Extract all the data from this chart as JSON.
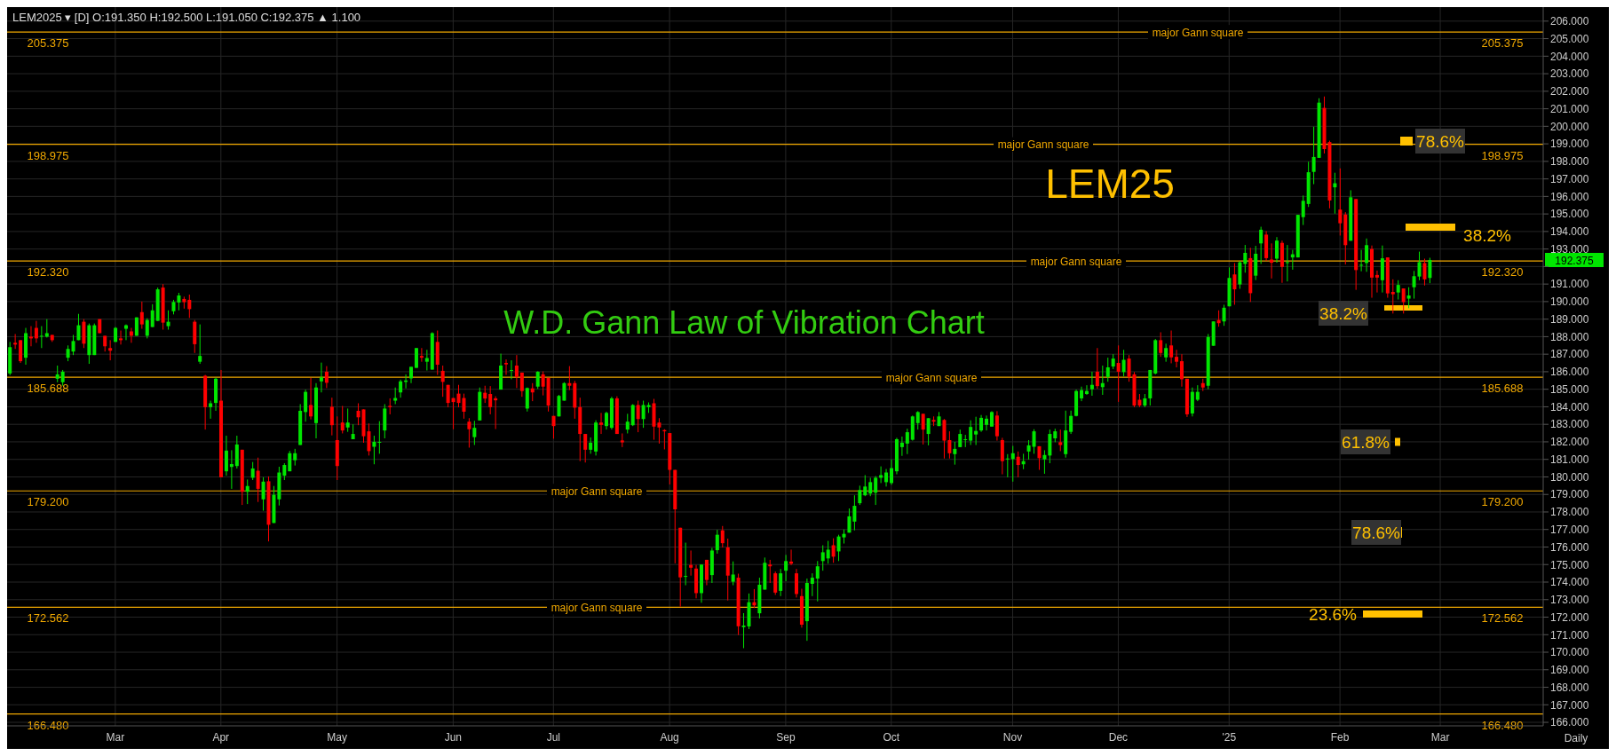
{
  "chart_data": {
    "type": "candlestick",
    "title": "W.D. Gann Law of Vibration Chart",
    "subtitle": "LEM2025 ▾ [D] O:191.350 H:192.500 L:191.050 C:192.375 ▲ 1.100",
    "categories": [
      null,
      null,
      null,
      null,
      null,
      null,
      null,
      null,
      null,
      null,
      null,
      null,
      null,
      null,
      null,
      null,
      null,
      null,
      null,
      null,
      "Mar",
      null,
      null,
      null,
      null,
      null,
      null,
      null,
      null,
      null,
      null,
      null,
      null,
      null,
      null,
      null,
      null,
      null,
      null,
      null,
      "Apr",
      null,
      null,
      null,
      null,
      null,
      null,
      null,
      null,
      null,
      null,
      null,
      null,
      null,
      null,
      null,
      null,
      null,
      null,
      null,
      null,
      null,
      "May",
      null,
      null,
      null,
      null,
      null,
      null,
      null,
      null,
      null,
      null,
      null,
      null,
      null,
      null,
      null,
      null,
      null,
      null,
      null,
      null,
      null,
      "Jun",
      null,
      null,
      null,
      null,
      null,
      null,
      null,
      null,
      null,
      null,
      null,
      null,
      null,
      null,
      null,
      null,
      null,
      null,
      "Jul",
      null,
      null,
      null,
      null,
      null,
      null,
      null,
      null,
      null,
      null,
      null,
      null,
      null,
      null,
      null,
      null,
      null,
      null,
      null,
      null,
      null,
      "Aug",
      null,
      null,
      null,
      null,
      null,
      null,
      null,
      null,
      null,
      null,
      null,
      null,
      null,
      null,
      null,
      null,
      null,
      null,
      null,
      null,
      null,
      "Sep",
      null,
      null,
      null,
      null,
      null,
      null,
      null,
      null,
      null,
      null,
      null,
      null,
      null,
      null,
      null,
      null,
      null,
      null,
      null,
      "Oct",
      null,
      null,
      null,
      null,
      null,
      null,
      null,
      null,
      null,
      null,
      null,
      null,
      null,
      null,
      null,
      null,
      null,
      null,
      null,
      null,
      null,
      null,
      "Nov",
      null,
      null,
      null,
      null,
      null,
      null,
      null,
      null,
      null,
      null,
      null,
      null,
      null,
      null,
      null,
      null,
      null,
      null,
      null,
      "Dec",
      null,
      null,
      null,
      null,
      null,
      null,
      null,
      null,
      null,
      null,
      null,
      null,
      null,
      null,
      null,
      null,
      null,
      null,
      null,
      null,
      "'25",
      null,
      null,
      null,
      null,
      null,
      null,
      null,
      null,
      null,
      null,
      null,
      null,
      null,
      null,
      null,
      null,
      null,
      null,
      null,
      null,
      "Feb",
      null,
      null,
      null,
      null,
      null,
      null,
      null,
      null,
      null,
      null,
      null,
      null,
      null,
      null,
      null,
      null,
      null,
      null,
      "Mar",
      null,
      null,
      null,
      null,
      null,
      null,
      null,
      null,
      null,
      null,
      null,
      null,
      null,
      null,
      null,
      null,
      null,
      null,
      null
    ],
    "ohlc": [
      [
        185.9,
        187.7,
        185.8,
        187.4
      ],
      [
        187.65,
        188.15,
        187.3,
        187.55
      ],
      [
        187.8,
        187.8,
        186.5,
        186.6
      ],
      [
        186.8,
        188.5,
        186.4,
        188.2
      ],
      [
        188.0,
        188.6,
        187.45,
        187.9
      ],
      [
        188.5,
        188.9,
        187.65,
        187.9
      ],
      [
        188.0,
        188.6,
        187.35,
        188.05
      ],
      [
        188.0,
        189.0,
        187.95,
        188.2
      ],
      [
        188.1,
        188.1,
        187.7,
        187.8
      ],
      [
        185.6,
        186.35,
        185.4,
        185.85
      ],
      [
        185.4,
        186.1,
        185.2,
        186.0
      ],
      [
        186.8,
        187.5,
        186.6,
        187.3
      ],
      [
        187.15,
        188.1,
        186.95,
        187.75
      ],
      [
        187.8,
        189.3,
        187.8,
        188.65
      ],
      [
        188.85,
        189.0,
        187.35,
        187.6
      ],
      [
        186.95,
        188.75,
        186.45,
        188.65
      ],
      [
        186.95,
        188.75,
        186.95,
        188.65
      ],
      [
        189.0,
        189.0,
        188.2,
        188.2
      ],
      [
        188.05,
        188.05,
        187.15,
        187.45
      ],
      [
        187.35,
        187.8,
        186.65,
        187.2
      ],
      [
        187.7,
        188.55,
        187.7,
        188.5
      ],
      [
        187.9,
        188.35,
        187.55,
        187.8
      ],
      [
        188.45,
        188.7,
        187.8,
        188.65
      ],
      [
        188.3,
        188.5,
        187.65,
        188.05
      ],
      [
        188.05,
        189.1,
        188.05,
        189.1
      ],
      [
        189.4,
        190.0,
        188.45,
        188.7
      ],
      [
        188.05,
        189.05,
        187.9,
        188.95
      ],
      [
        188.55,
        189.85,
        188.55,
        189.5
      ],
      [
        188.9,
        190.8,
        188.9,
        190.7
      ],
      [
        190.8,
        191.0,
        188.4,
        188.8
      ],
      [
        188.6,
        189.5,
        188.4,
        188.85
      ],
      [
        189.45,
        190.1,
        189.27,
        189.98
      ],
      [
        189.95,
        190.5,
        189.5,
        190.35
      ],
      [
        190.15,
        190.28,
        189.6,
        189.97
      ],
      [
        190.1,
        190.4,
        189.07,
        189.57
      ],
      [
        188.85,
        188.95,
        187.07,
        187.57
      ],
      [
        186.57,
        188.7,
        186.45,
        186.9
      ],
      [
        185.77,
        185.82,
        182.7,
        183.98
      ],
      [
        183.98,
        184.35,
        183.32,
        184.2
      ],
      [
        184.22,
        185.67,
        183.77,
        185.6
      ],
      [
        184.35,
        186.1,
        179.98,
        179.98
      ],
      [
        180.32,
        182.35,
        180.07,
        181.5
      ],
      [
        180.57,
        181.52,
        179.32,
        180.73
      ],
      [
        180.62,
        182.35,
        180.48,
        181.85
      ],
      [
        181.55,
        181.55,
        178.4,
        179.15
      ],
      [
        179.15,
        179.85,
        178.45,
        179.48
      ],
      [
        179.95,
        180.85,
        179.82,
        180.48
      ],
      [
        180.35,
        181.1,
        178.57,
        179.32
      ],
      [
        178.72,
        179.98,
        178.07,
        179.73
      ],
      [
        179.75,
        180.03,
        176.32,
        177.27
      ],
      [
        177.37,
        179.48,
        177.37,
        178.98
      ],
      [
        178.72,
        180.58,
        178.37,
        180.25
      ],
      [
        180.07,
        180.78,
        179.82,
        180.68
      ],
      [
        180.32,
        181.48,
        180.32,
        181.35
      ],
      [
        180.95,
        181.6,
        180.65,
        181.35
      ],
      [
        181.82,
        184.15,
        181.82,
        183.77
      ],
      [
        183.7,
        184.98,
        183.15,
        184.85
      ],
      [
        184.1,
        185.65,
        183.28,
        183.45
      ],
      [
        183.07,
        185.35,
        182.2,
        185.1
      ],
      [
        185.45,
        186.52,
        184.82,
        185.68
      ],
      [
        186.0,
        186.32,
        185.07,
        185.37
      ],
      [
        184.0,
        184.52,
        182.37,
        182.95
      ],
      [
        182.1,
        183.45,
        179.82,
        180.62
      ],
      [
        183.1,
        184.05,
        182.48,
        182.65
      ],
      [
        182.82,
        183.9,
        182.57,
        183.1
      ],
      [
        182.15,
        183.0,
        182.15,
        182.45
      ],
      [
        183.77,
        184.2,
        182.95,
        183.4
      ],
      [
        183.85,
        183.85,
        181.95,
        182.32
      ],
      [
        182.6,
        183.05,
        181.22,
        181.47
      ],
      [
        181.72,
        182.35,
        180.72,
        182.0
      ],
      [
        181.98,
        183.18,
        181.32,
        182.0
      ],
      [
        182.65,
        184.15,
        182.2,
        183.9
      ],
      [
        184.05,
        184.48,
        183.57,
        183.98
      ],
      [
        184.35,
        185.1,
        184.15,
        184.5
      ],
      [
        184.82,
        185.55,
        184.52,
        185.45
      ],
      [
        185.42,
        185.85,
        185.05,
        185.5
      ],
      [
        185.62,
        186.28,
        185.35,
        186.28
      ],
      [
        186.22,
        187.35,
        186.22,
        187.35
      ],
      [
        186.9,
        187.35,
        186.57,
        186.8
      ],
      [
        186.57,
        187.25,
        186.07,
        186.78
      ],
      [
        186.12,
        188.25,
        186.12,
        188.2
      ],
      [
        187.7,
        188.35,
        185.82,
        186.4
      ],
      [
        186.05,
        186.35,
        184.57,
        185.42
      ],
      [
        185.25,
        185.25,
        183.97,
        184.22
      ],
      [
        184.5,
        184.5,
        182.72,
        184.27
      ],
      [
        184.75,
        185.25,
        183.97,
        184.22
      ],
      [
        184.5,
        184.75,
        183.32,
        183.72
      ],
      [
        183.15,
        183.35,
        181.67,
        182.72
      ],
      [
        182.27,
        183.2,
        181.82,
        182.8
      ],
      [
        183.22,
        185.1,
        183.22,
        184.85
      ],
      [
        184.8,
        185.2,
        184.22,
        184.47
      ],
      [
        184.73,
        185.18,
        183.57,
        183.98
      ],
      [
        184.48,
        184.6,
        182.73,
        184.37
      ],
      [
        184.98,
        187.03,
        184.98,
        186.35
      ],
      [
        186.5,
        186.7,
        185.82,
        186.42
      ],
      [
        186.05,
        186.65,
        185.57,
        186.1
      ],
      [
        186.35,
        186.95,
        185.07,
        185.7
      ],
      [
        185.95,
        185.95,
        184.57,
        184.9
      ],
      [
        183.9,
        185.1,
        183.73,
        185.07
      ],
      [
        185.05,
        185.35,
        184.32,
        184.82
      ],
      [
        185.15,
        186.03,
        185.02,
        186.0
      ],
      [
        185.85,
        186.02,
        184.65,
        185.15
      ],
      [
        185.65,
        185.65,
        183.73,
        184.07
      ],
      [
        183.48,
        183.48,
        182.18,
        182.9
      ],
      [
        183.45,
        184.68,
        183.45,
        184.62
      ],
      [
        184.35,
        185.4,
        184.35,
        185.35
      ],
      [
        185.35,
        186.32,
        184.95,
        185.2
      ],
      [
        185.35,
        185.48,
        183.32,
        183.95
      ],
      [
        183.98,
        184.52,
        180.9,
        182.45
      ],
      [
        182.45,
        182.45,
        180.82,
        181.55
      ],
      [
        181.55,
        182.25,
        181.32,
        181.95
      ],
      [
        181.45,
        183.23,
        181.22,
        183.1
      ],
      [
        183.1,
        183.65,
        182.45,
        182.97
      ],
      [
        182.9,
        183.72,
        182.7,
        183.65
      ],
      [
        182.8,
        184.57,
        182.7,
        184.48
      ],
      [
        184.48,
        184.6,
        182.45,
        182.45
      ],
      [
        182.08,
        182.48,
        181.7,
        181.97
      ],
      [
        182.7,
        183.6,
        182.48,
        183.15
      ],
      [
        182.95,
        184.15,
        182.9,
        184.1
      ],
      [
        184.1,
        184.35,
        182.55,
        183.3
      ],
      [
        183.3,
        184.35,
        182.8,
        184.1
      ],
      [
        183.98,
        184.25,
        183.65,
        184.1
      ],
      [
        184.2,
        184.45,
        182.12,
        182.87
      ],
      [
        183.1,
        183.35,
        181.9,
        182.82
      ],
      [
        182.67,
        182.72,
        181.57,
        182.6
      ],
      [
        182.5,
        182.5,
        179.57,
        180.4
      ],
      [
        180.4,
        180.4,
        175.07,
        178.15
      ],
      [
        177.1,
        177.1,
        172.6,
        174.27
      ],
      [
        174.3,
        176.25,
        173.82,
        174.35
      ],
      [
        174.98,
        175.8,
        174.37,
        174.82
      ],
      [
        174.77,
        174.98,
        173.07,
        173.37
      ],
      [
        173.37,
        175.0,
        172.82,
        175.0
      ],
      [
        175.27,
        175.27,
        173.82,
        174.12
      ],
      [
        174.4,
        175.95,
        173.95,
        175.8
      ],
      [
        175.82,
        176.98,
        175.62,
        176.7
      ],
      [
        176.95,
        177.2,
        175.97,
        176.22
      ],
      [
        175.98,
        176.48,
        172.95,
        174.37
      ],
      [
        174.02,
        175.18,
        173.82,
        174.43
      ],
      [
        174.25,
        174.48,
        170.98,
        171.48
      ],
      [
        171.43,
        172.23,
        170.23,
        171.52
      ],
      [
        171.47,
        173.35,
        171.32,
        172.85
      ],
      [
        172.85,
        173.6,
        172.52,
        172.67
      ],
      [
        172.22,
        174.25,
        171.93,
        173.85
      ],
      [
        173.57,
        175.4,
        173.57,
        175.1
      ],
      [
        175.0,
        175.27,
        173.95,
        174.9
      ],
      [
        174.5,
        174.6,
        173.27,
        173.4
      ],
      [
        173.5,
        174.75,
        173.2,
        174.5
      ],
      [
        174.65,
        175.55,
        174.05,
        175.2
      ],
      [
        175.17,
        175.85,
        174.97,
        175.05
      ],
      [
        174.5,
        174.75,
        173.12,
        173.32
      ],
      [
        173.2,
        173.62,
        171.4,
        171.57
      ],
      [
        171.77,
        174.2,
        170.65,
        173.95
      ],
      [
        173.9,
        174.5,
        173.2,
        174.25
      ],
      [
        174.2,
        175.2,
        172.9,
        174.9
      ],
      [
        175.2,
        176.1,
        174.65,
        175.7
      ],
      [
        175.35,
        176.35,
        175.05,
        175.85
      ],
      [
        176.1,
        176.5,
        175.1,
        175.45
      ],
      [
        175.75,
        176.7,
        175.2,
        176.6
      ],
      [
        176.55,
        177.0,
        176.2,
        176.75
      ],
      [
        176.82,
        178.2,
        176.82,
        177.75
      ],
      [
        177.45,
        178.95,
        176.95,
        178.35
      ],
      [
        178.5,
        179.5,
        178.4,
        179.25
      ],
      [
        178.95,
        180.1,
        178.9,
        179.45
      ],
      [
        179.05,
        179.95,
        178.9,
        179.7
      ],
      [
        179.1,
        180.05,
        178.4,
        179.95
      ],
      [
        179.95,
        180.6,
        179.65,
        180.1
      ],
      [
        179.7,
        180.45,
        179.45,
        180.25
      ],
      [
        179.65,
        181.0,
        179.55,
        180.5
      ],
      [
        180.32,
        182.23,
        180.15,
        182.15
      ],
      [
        181.7,
        182.3,
        181.2,
        181.95
      ],
      [
        181.9,
        182.75,
        181.3,
        182.55
      ],
      [
        182.12,
        183.5,
        182.07,
        183.45
      ],
      [
        183.07,
        183.75,
        182.7,
        183.7
      ],
      [
        183.6,
        183.6,
        181.85,
        182.7
      ],
      [
        182.45,
        183.35,
        181.8,
        183.35
      ],
      [
        183.25,
        183.45,
        182.9,
        183.15
      ],
      [
        182.9,
        183.7,
        182.9,
        183.45
      ],
      [
        183.25,
        183.3,
        181.05,
        182.07
      ],
      [
        182.1,
        182.6,
        181.05,
        181.35
      ],
      [
        181.3,
        182.0,
        180.7,
        181.6
      ],
      [
        181.7,
        182.7,
        181.7,
        182.45
      ],
      [
        182.1,
        182.4,
        181.7,
        182.15
      ],
      [
        182.07,
        183.23,
        181.82,
        182.85
      ],
      [
        182.42,
        183.43,
        181.82,
        182.62
      ],
      [
        182.65,
        183.53,
        182.57,
        183.37
      ],
      [
        182.97,
        183.5,
        182.65,
        183.32
      ],
      [
        182.87,
        183.75,
        182.87,
        183.7
      ],
      [
        183.5,
        183.75,
        182.07,
        182.32
      ],
      [
        182.1,
        182.23,
        180.15,
        180.9
      ],
      [
        181.0,
        181.3,
        179.98,
        181.05
      ],
      [
        181.02,
        181.77,
        179.73,
        181.35
      ],
      [
        181.15,
        181.45,
        179.98,
        180.68
      ],
      [
        180.72,
        181.32,
        180.44,
        180.9
      ],
      [
        181.45,
        182.1,
        180.99,
        181.8
      ],
      [
        181.72,
        182.72,
        181.32,
        182.6
      ],
      [
        181.75,
        181.75,
        180.4,
        181.07
      ],
      [
        181.0,
        181.52,
        180.18,
        181.25
      ],
      [
        181.22,
        182.7,
        180.78,
        182.45
      ],
      [
        182.2,
        182.75,
        181.98,
        182.6
      ],
      [
        181.98,
        182.7,
        181.47,
        181.82
      ],
      [
        181.3,
        183.78,
        181.1,
        182.65
      ],
      [
        182.57,
        183.78,
        182.45,
        183.48
      ],
      [
        183.48,
        184.98,
        183.45,
        184.9
      ],
      [
        184.48,
        185.15,
        184.32,
        184.95
      ],
      [
        184.73,
        185.23,
        184.68,
        184.9
      ],
      [
        185.0,
        186.0,
        184.63,
        185.25
      ],
      [
        186.0,
        187.35,
        185.03,
        185.18
      ],
      [
        185.12,
        186.35,
        184.68,
        185.35
      ],
      [
        185.7,
        186.8,
        185.43,
        186.25
      ],
      [
        186.3,
        187.0,
        186.15,
        186.75
      ],
      [
        186.5,
        187.5,
        184.28,
        186.0
      ],
      [
        185.98,
        187.25,
        185.74,
        186.68
      ],
      [
        186.75,
        186.95,
        185.43,
        185.7
      ],
      [
        185.85,
        185.98,
        183.98,
        184.07
      ],
      [
        184.4,
        184.73,
        183.98,
        184.07
      ],
      [
        184.07,
        184.73,
        183.98,
        184.48
      ],
      [
        184.48,
        186.1,
        184.07,
        186.1
      ],
      [
        185.9,
        187.87,
        185.85,
        187.8
      ],
      [
        187.8,
        188.25,
        186.85,
        187.07
      ],
      [
        186.82,
        187.6,
        186.57,
        187.35
      ],
      [
        187.5,
        188.35,
        186.48,
        186.82
      ],
      [
        186.85,
        187.25,
        186.25,
        186.57
      ],
      [
        186.6,
        187.0,
        185.15,
        185.57
      ],
      [
        185.6,
        185.6,
        183.42,
        183.57
      ],
      [
        183.62,
        185.1,
        183.45,
        184.85
      ],
      [
        184.4,
        185.23,
        184.32,
        184.85
      ],
      [
        185.35,
        185.6,
        184.9,
        185.1
      ],
      [
        185.2,
        188.15,
        185.0,
        187.98
      ],
      [
        187.48,
        188.87,
        187.48,
        188.87
      ],
      [
        188.95,
        189.5,
        188.57,
        188.77
      ],
      [
        188.87,
        189.82,
        188.62,
        189.65
      ],
      [
        189.73,
        191.95,
        189.73,
        191.35
      ],
      [
        191.55,
        192.2,
        189.82,
        190.7
      ],
      [
        190.98,
        192.32,
        190.73,
        192.24
      ],
      [
        192.15,
        193.23,
        191.65,
        192.78
      ],
      [
        192.48,
        193.07,
        189.98,
        190.48
      ],
      [
        191.48,
        193.18,
        191.23,
        192.73
      ],
      [
        193.32,
        194.27,
        192.15,
        194.1
      ],
      [
        193.82,
        194.02,
        192.32,
        192.48
      ],
      [
        192.4,
        193.32,
        191.32,
        192.22
      ],
      [
        192.45,
        193.68,
        192.22,
        193.48
      ],
      [
        193.35,
        193.48,
        191.07,
        191.98
      ],
      [
        192.2,
        193.23,
        191.15,
        192.25
      ],
      [
        192.52,
        192.95,
        191.82,
        192.7
      ],
      [
        192.52,
        194.95,
        192.52,
        194.95
      ],
      [
        194.82,
        196.05,
        194.37,
        195.75
      ],
      [
        195.57,
        197.98,
        195.4,
        197.38
      ],
      [
        197.4,
        199.98,
        196.7,
        198.25
      ],
      [
        198.2,
        201.6,
        198.2,
        201.35
      ],
      [
        201.05,
        201.7,
        198.45,
        198.7
      ],
      [
        199.1,
        199.18,
        195.32,
        195.77
      ],
      [
        196.52,
        197.35,
        195.02,
        196.75
      ],
      [
        195.25,
        197.6,
        193.77,
        194.47
      ],
      [
        194.97,
        195.1,
        192.12,
        193.22
      ],
      [
        193.47,
        196.35,
        193.47,
        195.95
      ],
      [
        195.85,
        195.85,
        190.67,
        191.8
      ],
      [
        192.05,
        192.95,
        191.73,
        192.1
      ],
      [
        192.2,
        193.6,
        191.7,
        193.22
      ],
      [
        193.0,
        193.2,
        190.22,
        191.37
      ],
      [
        191.52,
        191.77,
        190.52,
        191.37
      ],
      [
        191.22,
        193.2,
        190.52,
        192.47
      ],
      [
        192.52,
        192.52,
        190.22,
        190.47
      ],
      [
        190.55,
        191.27,
        189.32,
        190.42
      ],
      [
        190.52,
        191.22,
        190.12,
        190.95
      ],
      [
        190.75,
        190.75,
        189.32,
        189.97
      ],
      [
        190.17,
        190.82,
        189.62,
        190.35
      ],
      [
        190.82,
        191.75,
        190.17,
        191.45
      ],
      [
        191.43,
        192.85,
        191.22,
        192.25
      ],
      [
        192.2,
        192.45,
        190.92,
        191.27
      ],
      [
        191.35,
        192.5,
        191.05,
        192.375
      ],
      null,
      null,
      null,
      null,
      null,
      null,
      null,
      null,
      null,
      null,
      null,
      null,
      null,
      null,
      null,
      null,
      null,
      null,
      null,
      null,
      null
    ],
    "ylim": [
      165.8,
      206.8
    ],
    "yticks": [
      {
        "value": 166,
        "label": "166.000"
      },
      {
        "value": 167,
        "label": "167.000"
      },
      {
        "value": 168,
        "label": "168.000"
      },
      {
        "value": 169,
        "label": "169.000"
      },
      {
        "value": 170,
        "label": "170.000"
      },
      {
        "value": 171,
        "label": "171.000"
      },
      {
        "value": 172,
        "label": "172.000"
      },
      {
        "value": 173,
        "label": "173.000"
      },
      {
        "value": 174,
        "label": "174.000"
      },
      {
        "value": 175,
        "label": "175.000"
      },
      {
        "value": 176,
        "label": "176.000"
      },
      {
        "value": 177,
        "label": "177.000"
      },
      {
        "value": 178,
        "label": "178.000"
      },
      {
        "value": 179,
        "label": "179.000"
      },
      {
        "value": 180,
        "label": "180.000"
      },
      {
        "value": 181,
        "label": "181.000"
      },
      {
        "value": 182,
        "label": "182.000"
      },
      {
        "value": 183,
        "label": "183.000"
      },
      {
        "value": 184,
        "label": "184.000"
      },
      {
        "value": 185,
        "label": "185.000"
      },
      {
        "value": 186,
        "label": "186.000"
      },
      {
        "value": 187,
        "label": "187.000"
      },
      {
        "value": 188,
        "label": "188.000"
      },
      {
        "value": 189,
        "label": "189.000"
      },
      {
        "value": 190,
        "label": "190.000"
      },
      {
        "value": 191,
        "label": "191.000"
      },
      {
        "value": 192,
        "label": null
      },
      {
        "value": 193,
        "label": "193.000"
      },
      {
        "value": 194,
        "label": "194.000"
      },
      {
        "value": 195,
        "label": "195.000"
      },
      {
        "value": 196,
        "label": "196.000"
      },
      {
        "value": 197,
        "label": "197.000"
      },
      {
        "value": 198,
        "label": "198.000"
      },
      {
        "value": 199,
        "label": "199.000"
      },
      {
        "value": 200,
        "label": "200.000"
      },
      {
        "value": 201,
        "label": "201.000"
      },
      {
        "value": 202,
        "label": "202.000"
      },
      {
        "value": 203,
        "label": "203.000"
      },
      {
        "value": 204,
        "label": "204.000"
      },
      {
        "value": 205,
        "label": "205.000"
      },
      {
        "value": 206,
        "label": "206.000"
      }
    ],
    "grid": true,
    "ref_lines": [
      {
        "axis": "y",
        "value": 205.375,
        "label": "major Gann square",
        "color": "#f0a800"
      },
      {
        "axis": "y",
        "value": 198.975,
        "label": "major Gann square",
        "color": "#f0a800"
      },
      {
        "axis": "y",
        "value": 192.32,
        "label": "major Gann square",
        "color": "#f0a800"
      },
      {
        "axis": "y",
        "value": 185.688,
        "label": "major Gann square",
        "color": "#f0a800"
      },
      {
        "axis": "y",
        "value": 179.2,
        "label": "major Gann square",
        "color": "#f0a800"
      },
      {
        "axis": "y",
        "value": 172.562,
        "label": "major Gann square",
        "color": "#f0a800"
      },
      {
        "axis": "y",
        "value": 166.48,
        "color": "#f0a800"
      }
    ],
    "annotations": [
      "LEM25",
      "78.6%",
      "38.2%",
      "38.2%",
      "61.8%",
      "78.6%",
      "23.6%",
      "192.375",
      "Daily",
      {
        "text": "205.375",
        "y": 205.375
      },
      {
        "text": "205.375",
        "y": 205.375
      },
      {
        "text": "198.975",
        "y": 198.975
      },
      {
        "text": "198.975",
        "y": 198.975
      },
      {
        "text": "192.320",
        "y": 192.32
      },
      {
        "text": "192.320",
        "y": 192.32
      },
      {
        "text": "185.688",
        "y": 185.688
      },
      {
        "text": "185.688",
        "y": 185.688
      },
      {
        "text": "179.200",
        "y": 179.2
      },
      {
        "text": "179.200",
        "y": 179.2
      },
      {
        "text": "172.562",
        "y": 172.562
      },
      {
        "text": "172.562",
        "y": 172.562
      },
      {
        "text": "166.480",
        "y": 166.48
      },
      {
        "text": "166.480",
        "y": 166.48
      }
    ]
  }
}
